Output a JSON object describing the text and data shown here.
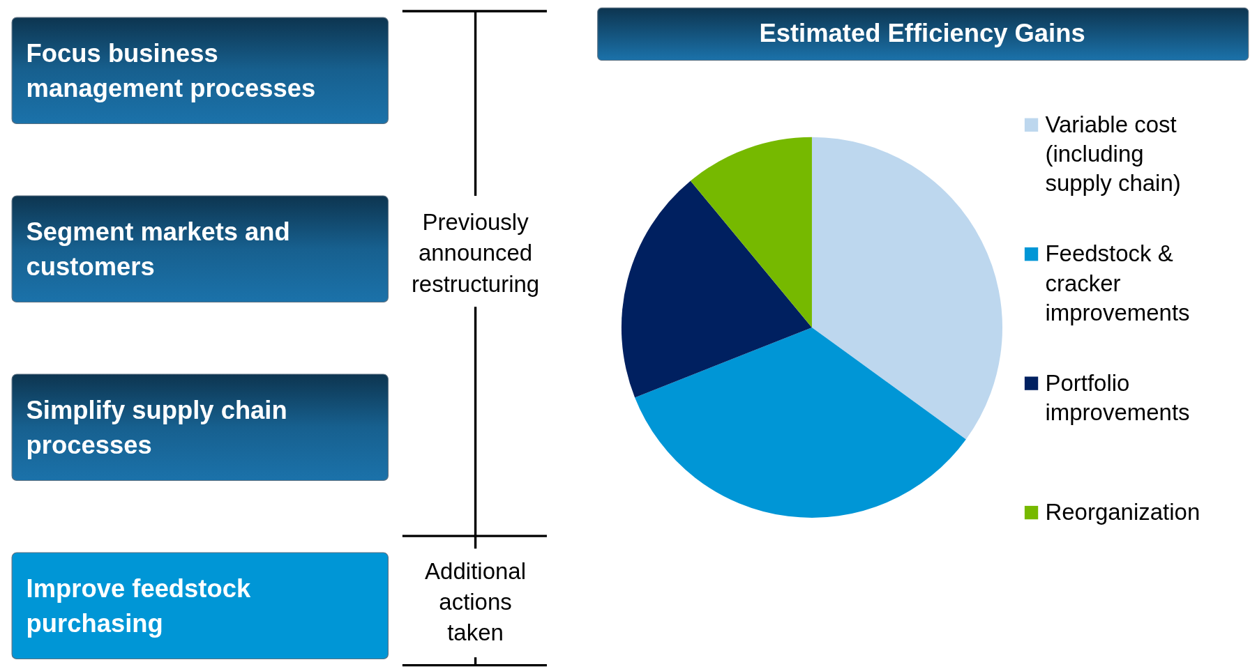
{
  "chart_data": [
    {
      "type": "other",
      "annotations": [
        "Focus business management processes",
        "Segment markets and customers",
        "Simplify supply chain processes",
        "Improve feedstock purchasing",
        "Previously announced restructuring",
        "Additional actions taken"
      ]
    },
    {
      "type": "pie",
      "title": "Estimated Efficiency Gains",
      "categories": [
        "Variable cost (including supply chain)",
        "Feedstock & cracker improvements",
        "Portfolio improvements",
        "Reorganization"
      ],
      "values": [
        35,
        34,
        20,
        11
      ],
      "colors": [
        "#bdd7ee",
        "#0096d6",
        "#002060",
        "#76b900"
      ],
      "legend": "right"
    }
  ]
}
